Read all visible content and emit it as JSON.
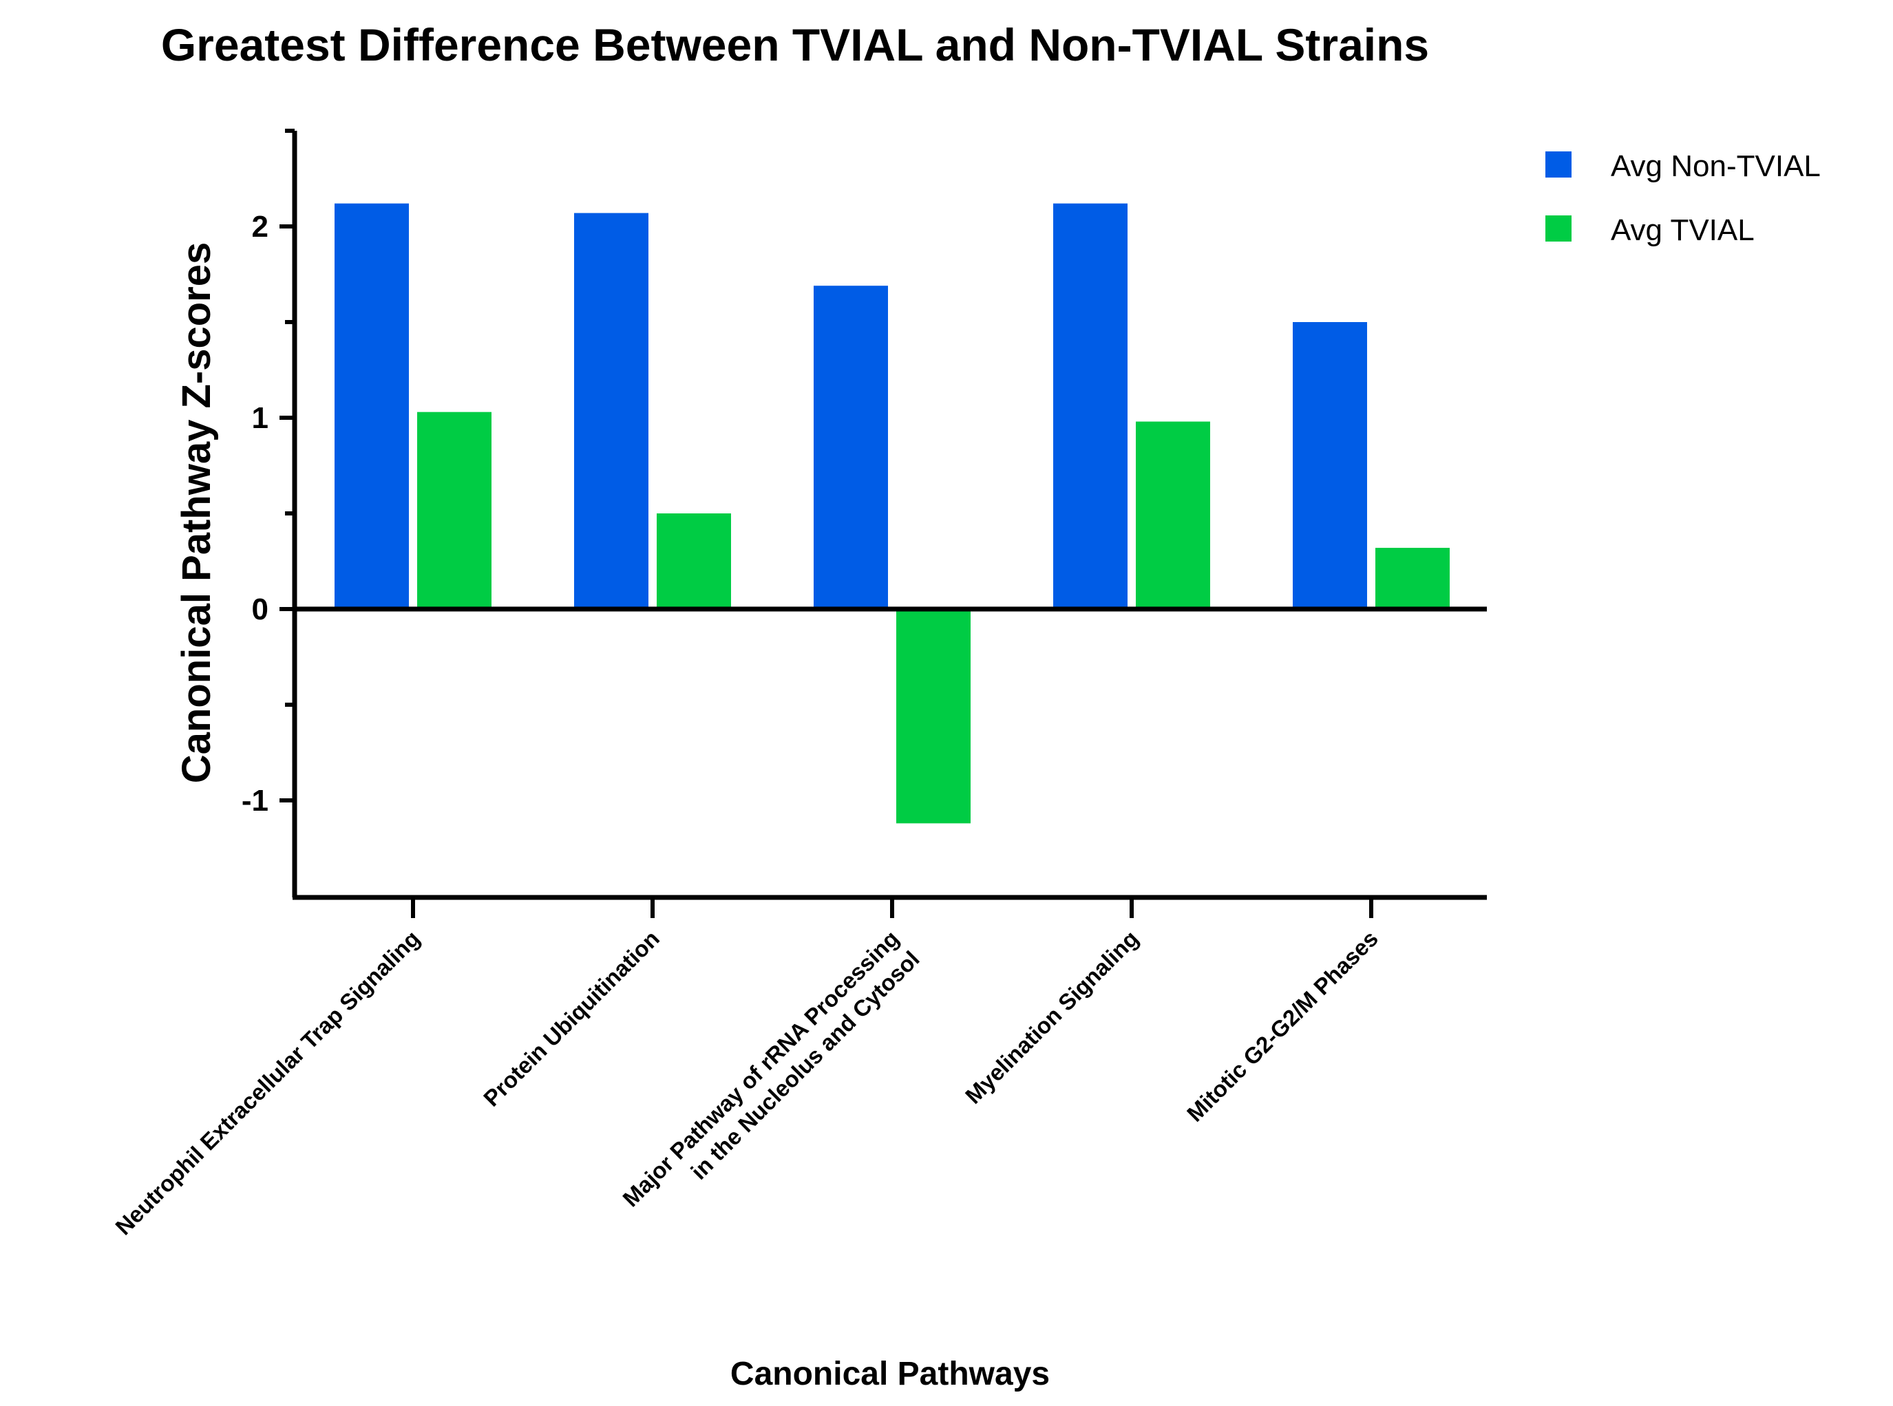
{
  "chart_data": {
    "type": "bar",
    "title": "Greatest Difference Between TVIAL and Non-TVIAL Strains",
    "xlabel": "Canonical Pathways",
    "ylabel": "Canonical Pathway Z-scores",
    "ylim": [
      -1.5,
      2.5
    ],
    "yticks": [
      -1,
      0,
      1,
      2
    ],
    "yticks_minor": [
      -0.5,
      0.5,
      1.5,
      2.5
    ],
    "ytick_labels": [
      "-1",
      "0",
      "1",
      "2"
    ],
    "categories": [
      [
        "Neutrophil Extracellular Trap Signaling"
      ],
      [
        "Protein Ubiquitination"
      ],
      [
        "Major Pathway of rRNA Processing",
        "in the Nucleolus and Cytosol"
      ],
      [
        "Myelination Signaling"
      ],
      [
        "Mitotic G2-G2/M Phases"
      ]
    ],
    "series": [
      {
        "name": "Avg Non-TVIAL",
        "color": "#005CE6",
        "values": [
          2.12,
          2.07,
          1.69,
          2.12,
          1.5
        ]
      },
      {
        "name": "Avg TVIAL",
        "color": "#00CC44",
        "values": [
          1.03,
          0.5,
          -1.12,
          0.98,
          0.32
        ]
      }
    ],
    "legend_position": "top-right",
    "grid": false
  }
}
